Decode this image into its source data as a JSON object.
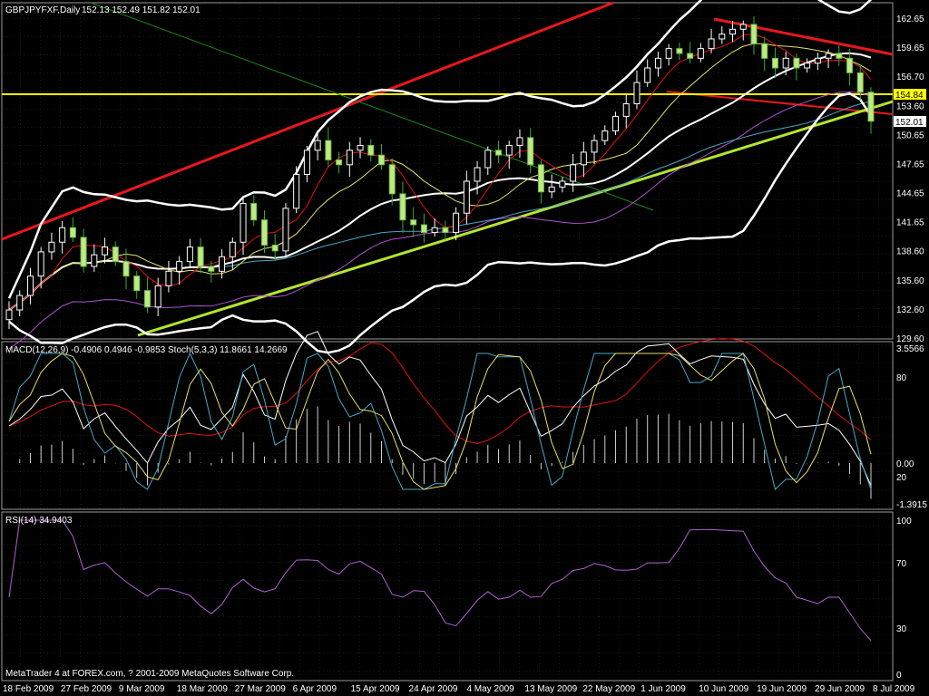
{
  "chart_data": {
    "type": "candlestick",
    "symbol_header": "GBPJPYFXF,Daily",
    "ohlc_header": "152.13 152.49 151.82 152.01",
    "price_ticks": [
      "162.65",
      "159.65",
      "156.70",
      "153.60",
      "150.65",
      "147.65",
      "144.65",
      "141.65",
      "138.60",
      "135.60",
      "132.60",
      "129.60"
    ],
    "date_ticks": [
      "18 Feb 2009",
      "27 Feb 2009",
      "9 Mar 2009",
      "18 Mar 2009",
      "27 Mar 2009",
      "6 Apr 2009",
      "15 Apr 2009",
      "24 Apr 2009",
      "4 May 2009",
      "13 May 2009",
      "22 May 2009",
      "1 Jun 2009",
      "10 Jun 2009",
      "19 Jun 2009",
      "29 Jun 2009",
      "8 Jul 2009"
    ],
    "closes": [
      132.5,
      134.0,
      136.0,
      138.5,
      139.5,
      141.0,
      140.0,
      137.0,
      138.2,
      139.0,
      137.5,
      136.0,
      134.5,
      132.8,
      135.0,
      136.5,
      137.5,
      139.0,
      137.0,
      136.5,
      138.0,
      139.5,
      143.5,
      141.8,
      139.2,
      138.6,
      143.0,
      146.5,
      149.0,
      150.0,
      148.0,
      147.5,
      149.0,
      149.5,
      148.5,
      147.5,
      144.5,
      141.8,
      141.3,
      140.5,
      141.0,
      140.5,
      142.5,
      145.8,
      147.2,
      149.0,
      148.5,
      149.5,
      150.3,
      147.5,
      144.7,
      145.2,
      145.8,
      147.5,
      148.8,
      150.0,
      151.0,
      152.5,
      153.8,
      156.0,
      157.5,
      158.5,
      159.5,
      159.0,
      158.5,
      159.5,
      160.5,
      161.0,
      161.5,
      162.0,
      160.0,
      158.5,
      157.5,
      158.5,
      157.5,
      158.0,
      158.5,
      159.0,
      158.5,
      157.0,
      155.0,
      152.0
    ],
    "price_levels": {
      "horizontal_line": "154.84",
      "last_price": "152.01"
    },
    "macd_header": "MACD(12,26,9) -0.4906 0.4946 -0.9853  Stoch(5,3,3) 11.8661 14.2669",
    "macd_ticks": [
      "3.5566",
      "80",
      "0.00",
      "20",
      "-1.3915"
    ],
    "rsi_header": "RSI(14) 34.9403",
    "rsi_ticks": [
      "100",
      "70",
      "30",
      "0"
    ],
    "footer_text": "MetaTrader 4 at FOREX.com, ? 2001-2009 MetaQuotes Software Corp.",
    "colors": {
      "background": "#000000",
      "bull": "#ffffff",
      "bear": "#3a3",
      "trend_red": "#e8171b",
      "trend_green": "#b4e62d",
      "support_yellow": "#ffff00",
      "bollinger": "#ffffff",
      "ma_red": "#e41010",
      "ma_yellow": "#e8e070",
      "ma_cyan": "#4aa8c8",
      "ma_magenta": "#b050d0",
      "ma_green": "#1c8a1c",
      "rsi": "#b060d0"
    }
  }
}
